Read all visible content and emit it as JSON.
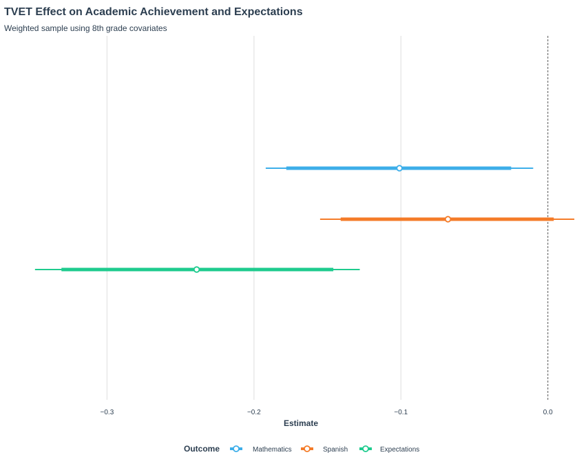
{
  "chart_data": {
    "type": "pointrange",
    "title": "TVET Effect on Academic Achievement and Expectations",
    "subtitle": "Weighted sample using 8th grade covariates",
    "xlabel": "Estimate",
    "ylabel": "",
    "xlim": [
      -0.37,
      0.017
    ],
    "x_ticks": [
      -0.3,
      -0.2,
      -0.1,
      0.0
    ],
    "x_tick_labels": [
      "−0.3",
      "−0.2",
      "−0.1",
      "0.0"
    ],
    "reference_line": 0.0,
    "grid": "vertical-major",
    "legend_title": "Outcome",
    "legend_position": "bottom",
    "series": [
      {
        "name": "Mathematics",
        "color": "#3daee9",
        "estimate": -0.101,
        "ci_inner": [
          -0.178,
          -0.025
        ],
        "ci_outer": [
          -0.192,
          -0.01
        ]
      },
      {
        "name": "Spanish",
        "color": "#f47b28",
        "estimate": -0.068,
        "ci_inner": [
          -0.141,
          0.004
        ],
        "ci_outer": [
          -0.155,
          0.018
        ]
      },
      {
        "name": "Expectations",
        "color": "#1ecb8e",
        "estimate": -0.239,
        "ci_inner": [
          -0.331,
          -0.146
        ],
        "ci_outer": [
          -0.349,
          -0.128
        ]
      }
    ]
  }
}
